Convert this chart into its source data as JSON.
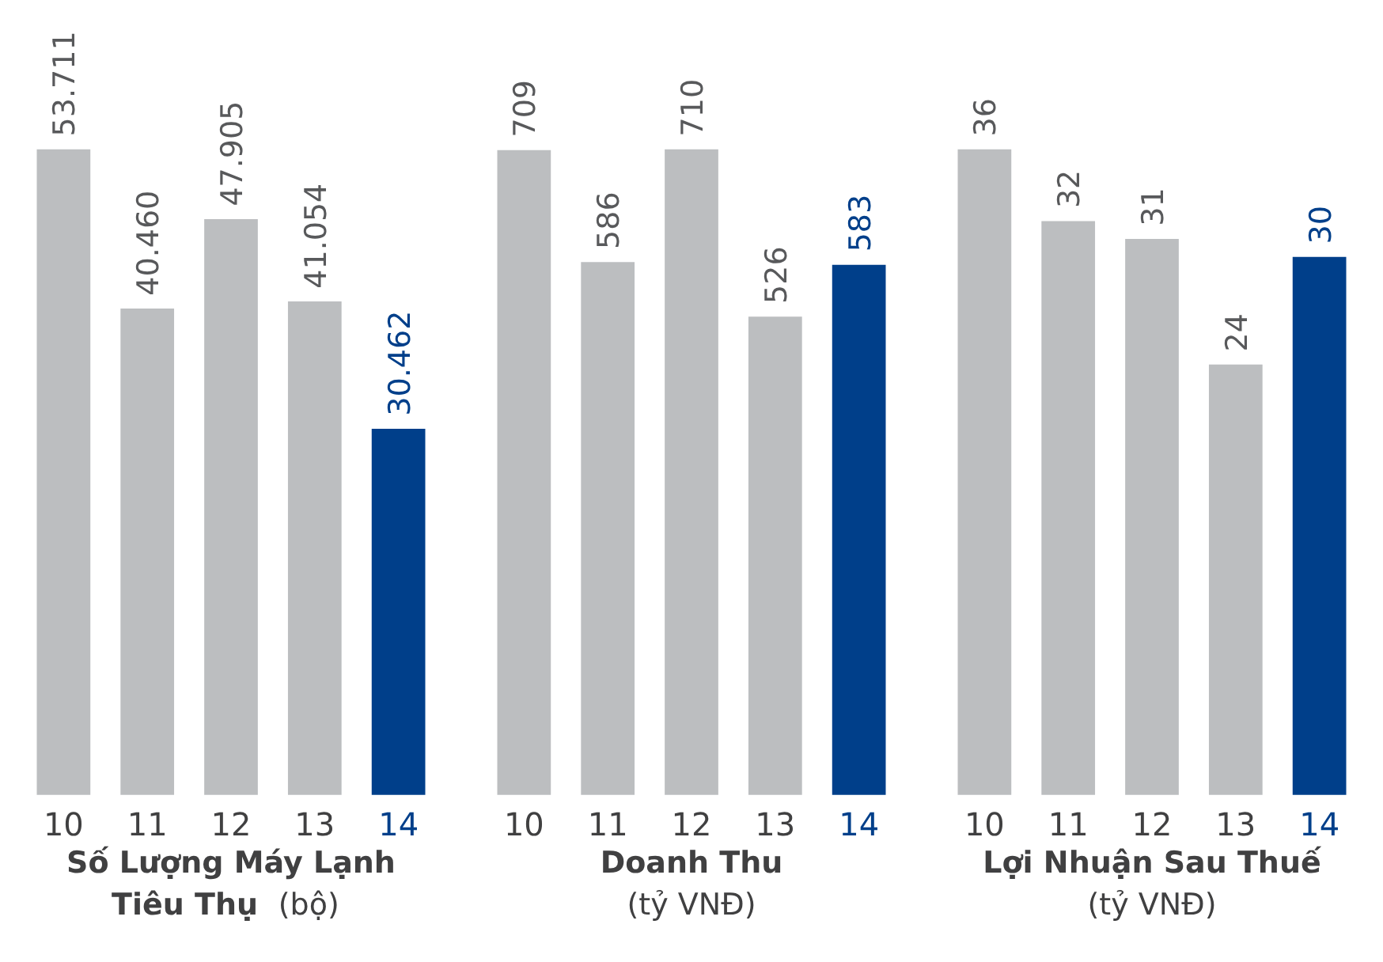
{
  "chart_data": [
    {
      "type": "bar",
      "categories": [
        "10",
        "11",
        "12",
        "13",
        "14"
      ],
      "values": [
        53711,
        40460,
        47905,
        41054,
        30462
      ],
      "value_labels": [
        "53.711",
        "40.460",
        "47.905",
        "41.054",
        "30.462"
      ],
      "colors": [
        "#bcbec0",
        "#bcbec0",
        "#bcbec0",
        "#bcbec0",
        "#003f8a"
      ],
      "xlabel": "Số Lượng Máy Lạnh Tiêu Thụ",
      "subtitle": "(bộ)",
      "grid": false,
      "tick_labels": "x"
    },
    {
      "type": "bar",
      "categories": [
        "10",
        "11",
        "12",
        "13",
        "14"
      ],
      "values": [
        709,
        586,
        710,
        526,
        583
      ],
      "data_labels": true,
      "colors": [
        "#bcbec0",
        "#bcbec0",
        "#bcbec0",
        "#bcbec0",
        "#003f8a"
      ],
      "xlabel": "Doanh Thu",
      "subtitle": "(tỷ VNĐ)",
      "grid": false,
      "tick_labels": "x"
    },
    {
      "type": "bar",
      "categories": [
        "10",
        "11",
        "12",
        "13",
        "14"
      ],
      "values": [
        36,
        32,
        31,
        24,
        30
      ],
      "data_labels": true,
      "colors": [
        "#bcbec0",
        "#bcbec0",
        "#bcbec0",
        "#bcbec0",
        "#003f8a"
      ],
      "xlabel": "Lợi Nhuận Sau Thuế",
      "subtitle": "(tỷ VNĐ)",
      "grid": false,
      "tick_labels": "x"
    }
  ]
}
